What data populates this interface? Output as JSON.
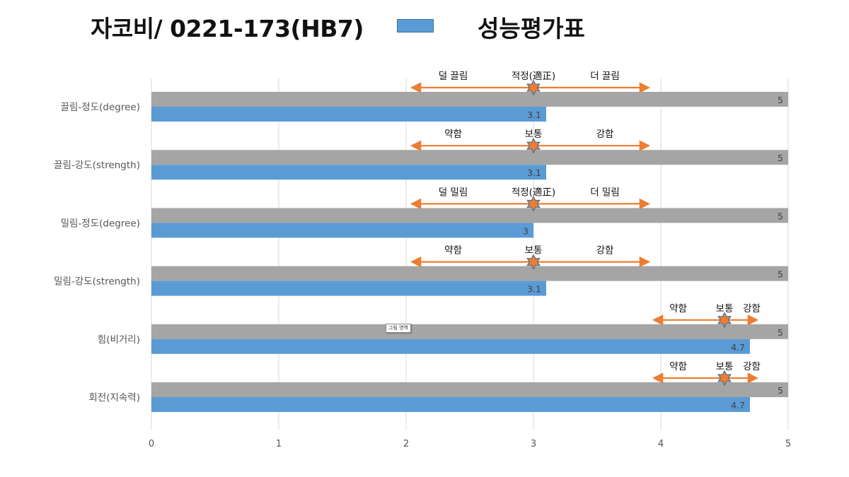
{
  "header": {
    "title": "자코비/ 0221-173(HB7)",
    "legend_label": "성능평가표"
  },
  "chart_data": {
    "type": "bar",
    "orientation": "horizontal",
    "categories": [
      "끌림-정도(degree)",
      "끌림-강도(strength)",
      "밀림-정도(degree)",
      "밀림-강도(strength)",
      "힘(비거리)",
      "회전(지속력)"
    ],
    "series": [
      {
        "values": [
          5,
          5,
          5,
          5,
          5,
          5
        ],
        "color": "#a5a5a5"
      },
      {
        "name": "성능평가표",
        "values": [
          3.1,
          3.1,
          3,
          3.1,
          4.7,
          4.7
        ],
        "color": "#5b9bd5"
      }
    ],
    "data_labels": {
      "max": [
        "5",
        "5",
        "5",
        "5",
        "5",
        "5"
      ],
      "score": [
        "3.1",
        "3.1",
        "3",
        "3.1",
        "4.7",
        "4.7"
      ]
    },
    "xlim": [
      0,
      5
    ],
    "x_ticks": [
      "0",
      "1",
      "2",
      "3",
      "4",
      "5"
    ],
    "grid": true,
    "legend_position": "top",
    "annotations": [
      {
        "left": "덜 끌림",
        "center": "적정(適正)",
        "right": "더 끌림",
        "range": [
          2.05,
          3.9
        ],
        "marker": 3
      },
      {
        "left": "약함",
        "center": "보통",
        "right": "강함",
        "range": [
          2.05,
          3.9
        ],
        "marker": 3
      },
      {
        "left": "덜 밀림",
        "center": "적정(適正)",
        "right": "더 밀림",
        "range": [
          2.05,
          3.9
        ],
        "marker": 3
      },
      {
        "left": "약함",
        "center": "보통",
        "right": "강함",
        "range": [
          2.05,
          3.9
        ],
        "marker": 3
      },
      {
        "left": "약함",
        "center": "보통",
        "right": "강함",
        "range": [
          3.95,
          4.75
        ],
        "marker": 4.5
      },
      {
        "left": "약함",
        "center": "보통",
        "right": "강함",
        "range": [
          3.95,
          4.75
        ],
        "marker": 4.5
      }
    ],
    "colors": {
      "arrow": "#ed7d31",
      "star_fill": "#ed7d31",
      "star_stroke": "#41719c"
    }
  },
  "overlay": {
    "tooltip_text": "그림 영역"
  }
}
